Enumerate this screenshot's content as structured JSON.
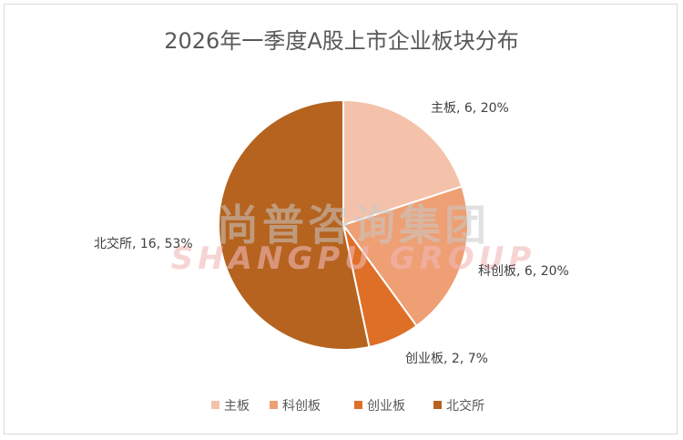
{
  "chart_data": {
    "type": "pie",
    "title": "2026年一季度A股上市企业板块分布",
    "categories": [
      "主板",
      "科创板",
      "创业板",
      "北交所"
    ],
    "values": [
      6,
      6,
      2,
      16
    ],
    "percent_labels": [
      "20%",
      "20%",
      "7%",
      "53%"
    ],
    "data_labels": [
      "主板, 6, 20%",
      "科创板, 6, 20%",
      "创业板, 2, 7%",
      "北交所, 16, 53%"
    ],
    "colors": [
      "#F4C2AA",
      "#EE9F73",
      "#DE6F26",
      "#B5631F"
    ],
    "legend_position": "bottom",
    "start_angle": "12 o'clock, clockwise"
  },
  "watermark": {
    "cn": "尚普咨询集团",
    "en": "SHANGPU GROUP"
  }
}
